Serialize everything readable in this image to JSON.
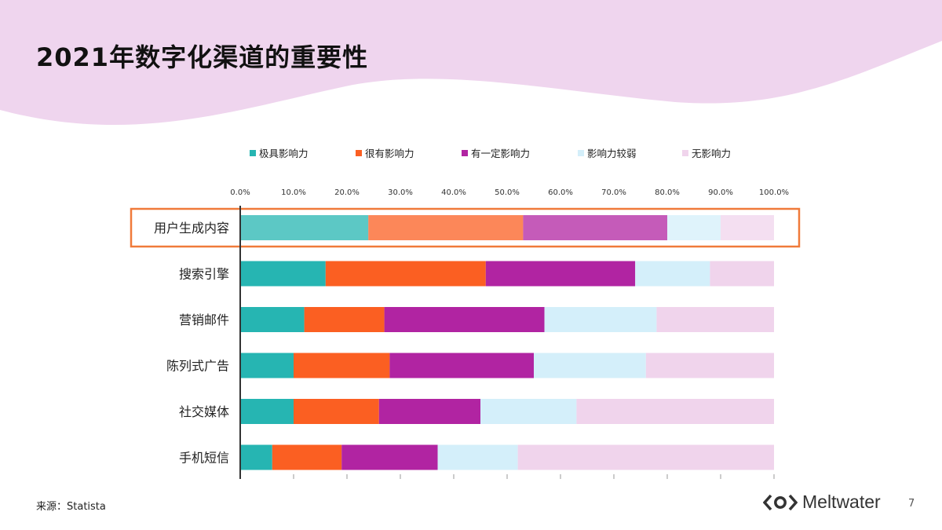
{
  "slide": {
    "title": "2021年数字化渠道的重要性",
    "source": "来源：Statista",
    "logo_text": "Meltwater",
    "page_number": "7"
  },
  "colors": {
    "banner": "#efd5ee",
    "highlight_border": "#f07a3a",
    "axis": "#333333"
  },
  "chart_data": {
    "type": "bar",
    "orientation": "horizontal",
    "stacked": true,
    "title": "",
    "xlabel": "",
    "ylabel": "",
    "xlim": [
      0,
      100
    ],
    "x_ticks": [
      "0.0%",
      "10.0%",
      "20.0%",
      "30.0%",
      "40.0%",
      "50.0%",
      "60.0%",
      "70.0%",
      "80.0%",
      "90.0%",
      "100.0%"
    ],
    "grid": false,
    "legend_position": "top",
    "categories": [
      "用户生成内容",
      "搜索引擎",
      "营销邮件",
      "陈列式广告",
      "社交媒体",
      "手机短信"
    ],
    "highlighted_category": "用户生成内容",
    "series": [
      {
        "name": "极具影响力",
        "color": "#26b5b2",
        "values": [
          24,
          16,
          12,
          10,
          10,
          6
        ]
      },
      {
        "name": "很有影响力",
        "color": "#fb5f22",
        "values": [
          29,
          30,
          15,
          18,
          16,
          13
        ]
      },
      {
        "name": "有一定影响力",
        "color": "#b124a2",
        "values": [
          27,
          28,
          30,
          27,
          19,
          18
        ]
      },
      {
        "name": "影响力较弱",
        "color": "#d4effa",
        "values": [
          10,
          14,
          21,
          21,
          18,
          15
        ]
      },
      {
        "name": "无影响力",
        "color": "#f0d4ec",
        "values": [
          10,
          12,
          22,
          24,
          37,
          48
        ]
      }
    ]
  }
}
